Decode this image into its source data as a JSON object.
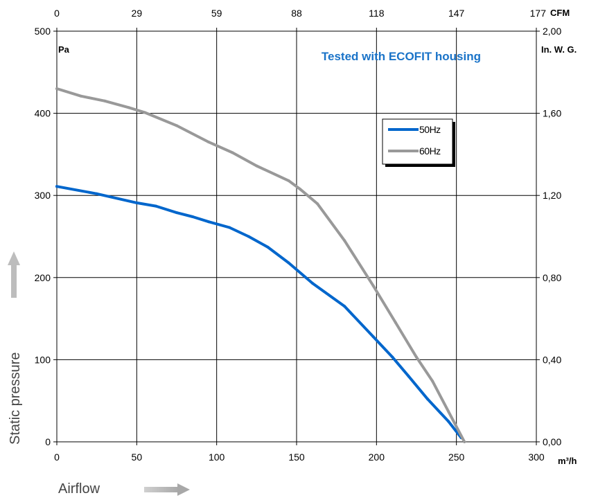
{
  "chart_data": {
    "type": "line",
    "title": "Tested with ECOFIT housing",
    "xlabel": "Airflow",
    "ylabel": "Static pressure",
    "x_unit": "m³/h",
    "y_unit": "Pa",
    "x2_unit": "CFM",
    "y2_unit": "In. W. G.",
    "xlim": [
      0,
      300
    ],
    "ylim": [
      0,
      500
    ],
    "x_ticks": [
      "0",
      "50",
      "100",
      "150",
      "200",
      "250",
      "300"
    ],
    "y_ticks": [
      "0",
      "100",
      "200",
      "300",
      "400",
      "500"
    ],
    "x2_ticks": [
      "0",
      "29",
      "59",
      "88",
      "118",
      "147",
      "177"
    ],
    "y2_ticks": [
      "0,00",
      "0,40",
      "0,80",
      "1,20",
      "1,60",
      "2,00"
    ],
    "grid": true,
    "legend_position": "top-right",
    "series": [
      {
        "name": "50Hz",
        "color": "#0066CC",
        "x": [
          0,
          25,
          50,
          62,
          75,
          85,
          95,
          108,
          120,
          132,
          145,
          160,
          180,
          198,
          210,
          220,
          232,
          245,
          253
        ],
        "y": [
          311,
          302,
          291,
          287,
          279,
          274,
          268,
          261,
          250,
          237,
          218,
          193,
          165,
          128,
          103,
          80,
          52,
          25,
          5
        ]
      },
      {
        "name": "60Hz",
        "color": "#999999",
        "x": [
          0,
          15,
          30,
          45,
          55,
          75,
          95,
          110,
          125,
          145,
          152,
          163,
          180,
          198,
          212,
          225,
          235,
          245,
          255
        ],
        "y": [
          430,
          421,
          415,
          407,
          401,
          385,
          365,
          352,
          336,
          318,
          308,
          290,
          245,
          190,
          145,
          103,
          74,
          37,
          0
        ]
      }
    ]
  }
}
